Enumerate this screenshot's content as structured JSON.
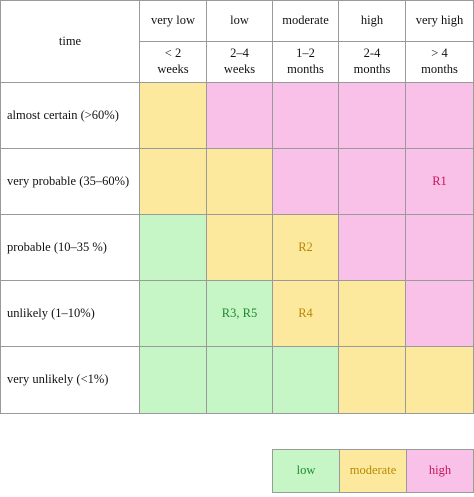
{
  "header": {
    "corner": "time",
    "levels": [
      "very low",
      "low",
      "moderate",
      "high",
      "very high"
    ],
    "durations": [
      "< 2 weeks",
      "2–4 weeks",
      "1–2 months",
      "2-4 months",
      "> 4 months"
    ]
  },
  "rows": [
    {
      "label": "almost certain (>60%)",
      "cells": [
        "",
        "",
        "",
        "",
        ""
      ]
    },
    {
      "label": "very probable (35–60%)",
      "cells": [
        "",
        "",
        "",
        "",
        "R1"
      ]
    },
    {
      "label": "probable (10–35 %)",
      "cells": [
        "",
        "",
        "R2",
        "",
        ""
      ]
    },
    {
      "label": "unlikely (1–10%)",
      "cells": [
        "",
        "R3, R5",
        "R4",
        "",
        ""
      ]
    },
    {
      "label": "very unlikely (<1%)",
      "cells": [
        "",
        "",
        "",
        "",
        ""
      ]
    }
  ],
  "legend": [
    "low",
    "moderate",
    "high"
  ],
  "colors": {
    "low": "#c6f5c6",
    "moderate": "#fde99e",
    "high": "#f9c0e8"
  }
}
